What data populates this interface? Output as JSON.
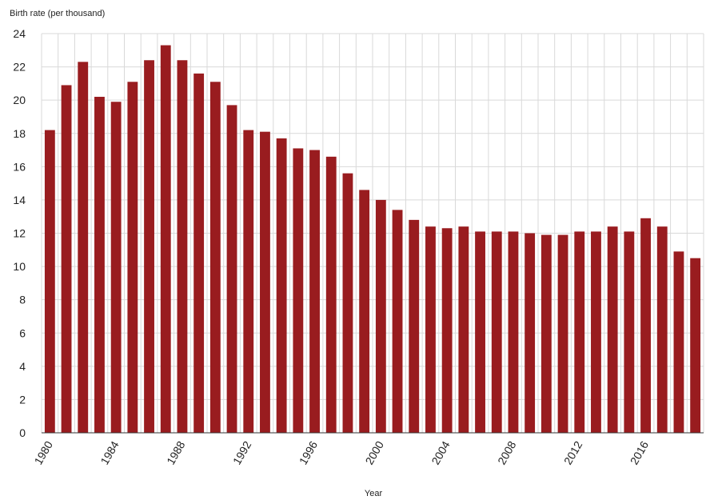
{
  "chart_data": {
    "type": "bar",
    "title": "",
    "ylabel": "Birth rate (per thousand)",
    "xlabel": "Year",
    "ylim": [
      0,
      24
    ],
    "yticks": [
      0,
      2,
      4,
      6,
      8,
      10,
      12,
      14,
      16,
      18,
      20,
      22,
      24
    ],
    "grid": true,
    "bar_color": "#991c1f",
    "categories": [
      "1980",
      "1981",
      "1982",
      "1983",
      "1984",
      "1985",
      "1986",
      "1987",
      "1988",
      "1989",
      "1990",
      "1991",
      "1992",
      "1993",
      "1994",
      "1995",
      "1996",
      "1997",
      "1998",
      "1999",
      "2000",
      "2001",
      "2002",
      "2003",
      "2004",
      "2005",
      "2006",
      "2007",
      "2008",
      "2009",
      "2010",
      "2011",
      "2012",
      "2013",
      "2014",
      "2015",
      "2016",
      "2017",
      "2018",
      "2019"
    ],
    "xtick_labels": [
      "1980",
      "1984",
      "1988",
      "1992",
      "1996",
      "2000",
      "2004",
      "2008",
      "2012",
      "2016"
    ],
    "values": [
      18.2,
      20.9,
      22.3,
      20.2,
      19.9,
      21.1,
      22.4,
      23.3,
      22.4,
      21.6,
      21.1,
      19.7,
      18.2,
      18.1,
      17.7,
      17.1,
      17.0,
      16.6,
      15.6,
      14.6,
      14.0,
      13.4,
      12.8,
      12.4,
      12.3,
      12.4,
      12.1,
      12.1,
      12.1,
      12.0,
      11.9,
      11.9,
      12.1,
      12.1,
      12.4,
      12.1,
      12.9,
      12.4,
      10.9,
      10.5
    ]
  }
}
